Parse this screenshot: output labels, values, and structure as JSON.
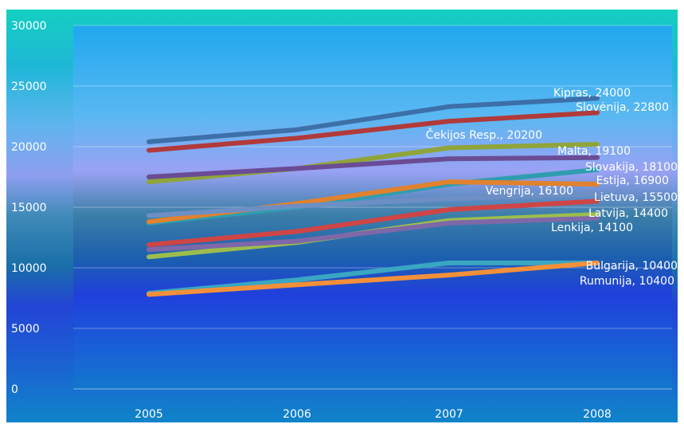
{
  "chart_data": {
    "type": "line",
    "categories": [
      "2005",
      "2006",
      "2007",
      "2008"
    ],
    "ylim": [
      0,
      30000
    ],
    "yticks": [
      0,
      5000,
      10000,
      15000,
      20000,
      25000,
      30000
    ],
    "grid": true,
    "series": [
      {
        "name": "Kipras",
        "values": [
          20400,
          21400,
          23300,
          24000
        ],
        "color": "#3d6fa8",
        "label": "Kipras, 24000"
      },
      {
        "name": "Slovėnija",
        "values": [
          19700,
          20700,
          22100,
          22800
        ],
        "color": "#b13a3a",
        "label": "Slovėnija, 22800"
      },
      {
        "name": "Čekijos Resp.",
        "values": [
          17100,
          18200,
          19900,
          20200
        ],
        "color": "#8fa53a",
        "label": "Čekijos Resp., 20200"
      },
      {
        "name": "Malta",
        "values": [
          17500,
          18200,
          19000,
          19100
        ],
        "color": "#6a4c95",
        "label": "Malta, 19100"
      },
      {
        "name": "Slovakija",
        "values": [
          13700,
          15000,
          16900,
          18100
        ],
        "color": "#2f9db0",
        "label": "Slovakija, 18100"
      },
      {
        "name": "Estija",
        "values": [
          13800,
          15300,
          17100,
          16900
        ],
        "color": "#e0822e",
        "label": "Estija, 16900"
      },
      {
        "name": "Vengrija",
        "values": [
          14300,
          15100,
          15700,
          16100
        ],
        "color": "#6d8fc4",
        "label": "Vengrija, 16100"
      },
      {
        "name": "Lietuva",
        "values": [
          11900,
          13000,
          14800,
          15500
        ],
        "color": "#cf4545",
        "label": "Lietuva, 15500"
      },
      {
        "name": "Latvija",
        "values": [
          10900,
          12100,
          13900,
          14400
        ],
        "color": "#9cbd4e",
        "label": "Latvija, 14400"
      },
      {
        "name": "Lenkija",
        "values": [
          11500,
          12200,
          13700,
          14100
        ],
        "color": "#7e68a8",
        "label": "Lenkija, 14100"
      },
      {
        "name": "Bulgarija",
        "values": [
          7900,
          9000,
          10400,
          10400
        ],
        "color": "#3aa6c2",
        "label": "Bulgarija, 10400"
      },
      {
        "name": "Rumunija",
        "values": [
          7800,
          8600,
          9400,
          10400
        ],
        "color": "#f5903a",
        "label": "Rumunija, 10400"
      }
    ]
  }
}
